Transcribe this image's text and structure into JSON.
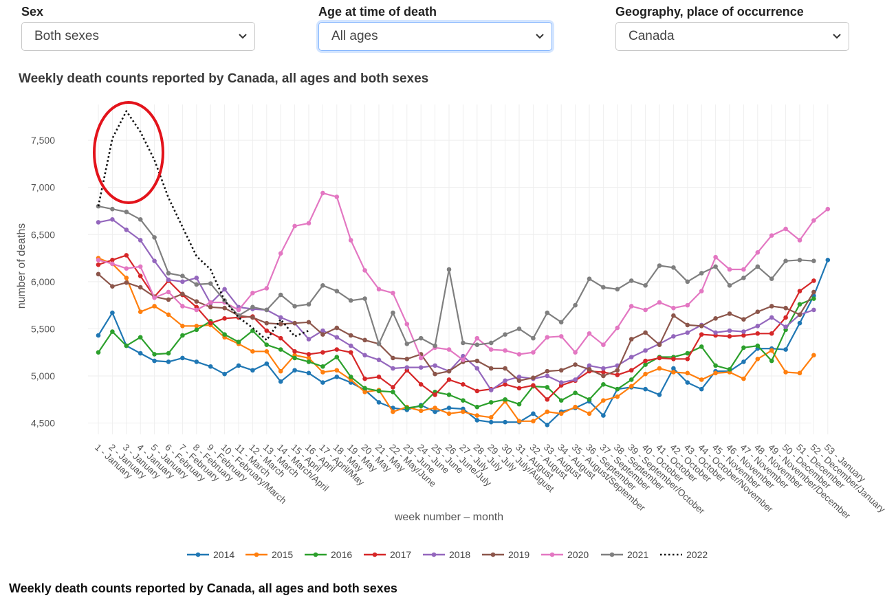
{
  "filters": [
    {
      "label": "Sex",
      "value": "Both sexes"
    },
    {
      "label": "Age at time of death",
      "value": "All ages"
    },
    {
      "label": "Geography, place of occurrence",
      "value": "Canada"
    }
  ],
  "bottom_title": "Weekly death counts reported by Canada, all ages and both sexes",
  "chart_data": {
    "type": "line",
    "title": "Weekly death counts reported by Canada, all ages and both sexes",
    "xlabel": "week number – month",
    "ylabel": "number of deaths",
    "ylim": [
      4380,
      7880
    ],
    "yticks": [
      4500,
      5000,
      5500,
      6000,
      6500,
      7000,
      7500
    ],
    "ytick_labels": [
      "4,500",
      "5,000",
      "5,500",
      "6,000",
      "6,500",
      "7,000",
      "7,500"
    ],
    "grid": true,
    "legend_position": "bottom",
    "annotation": "red ellipse highlighting the 2022 peak in weeks 1–6",
    "categories": [
      "1 - January",
      "2 - January",
      "3 - January",
      "4 - January",
      "5 - January",
      "6 - February",
      "7 - February",
      "8 - February",
      "9 - February",
      "10 - February/March",
      "11 - March",
      "12 - March",
      "13 - March",
      "14 - March/April",
      "15 - April",
      "16 - April",
      "17 - April/May",
      "18 - May",
      "19 - May",
      "20 - May",
      "21 - May",
      "22 - May/June",
      "23 - June",
      "24 - June",
      "25 - June",
      "26 - June/July",
      "27 - July",
      "28 - July",
      "29 - July",
      "30 - July/August",
      "31 - August",
      "32 - August",
      "33 - August",
      "34 - August",
      "35 - August/September",
      "36 - September",
      "37 - September",
      "38 - September",
      "39 - September/October",
      "40 - October",
      "41 - October",
      "42 - October",
      "43 - October",
      "44 - October/November",
      "45 - November",
      "46 - November",
      "47 - November",
      "48 - November",
      "49 - November/December",
      "50 - December",
      "51 - December",
      "52 - December/January",
      "53 - January"
    ],
    "series": [
      {
        "name": "2014",
        "color": "#1f77b4",
        "dash": false,
        "markers": true,
        "values": [
          5430,
          5670,
          5320,
          5240,
          5160,
          5150,
          5190,
          5150,
          5100,
          5020,
          5110,
          5060,
          5130,
          4940,
          5060,
          5030,
          4930,
          4990,
          4930,
          4850,
          4720,
          4660,
          4640,
          4690,
          4620,
          4660,
          4650,
          4530,
          4510,
          4510,
          4510,
          4600,
          4480,
          4620,
          4660,
          4730,
          4580,
          4860,
          4880,
          4860,
          4800,
          5080,
          4930,
          4860,
          5050,
          5050,
          5150,
          5290,
          5290,
          5280,
          5560,
          5850,
          6230
        ]
      },
      {
        "name": "2015",
        "color": "#ff7f0e",
        "dash": false,
        "markers": true,
        "values": [
          6250,
          6190,
          6040,
          5680,
          5740,
          5650,
          5530,
          5530,
          5540,
          5410,
          5340,
          5260,
          5260,
          5050,
          5220,
          5190,
          5040,
          5060,
          4960,
          4830,
          4850,
          4620,
          4670,
          4630,
          4660,
          4600,
          4620,
          4580,
          4560,
          4730,
          4520,
          4520,
          4620,
          4600,
          4670,
          4600,
          4740,
          4780,
          4890,
          5020,
          5080,
          5040,
          5030,
          4960,
          5030,
          5040,
          4970,
          5180,
          5270,
          5040,
          5030,
          5220,
          null
        ]
      },
      {
        "name": "2016",
        "color": "#2ca02c",
        "dash": false,
        "markers": true,
        "values": [
          5250,
          5470,
          5320,
          5410,
          5230,
          5240,
          5430,
          5490,
          5580,
          5440,
          5360,
          5480,
          5330,
          5280,
          5190,
          5150,
          5100,
          5200,
          4990,
          4870,
          4840,
          4830,
          4660,
          4680,
          4830,
          4800,
          4740,
          4670,
          4720,
          4750,
          4700,
          4890,
          4880,
          4740,
          4820,
          4750,
          4910,
          4860,
          4960,
          5120,
          5200,
          5200,
          5240,
          5310,
          5110,
          5070,
          5300,
          5320,
          5160,
          5490,
          5760,
          5820,
          null
        ]
      },
      {
        "name": "2017",
        "color": "#d62728",
        "dash": false,
        "markers": true,
        "values": [
          6180,
          6230,
          6280,
          6060,
          5840,
          6010,
          5860,
          5730,
          5560,
          5610,
          5620,
          5630,
          5480,
          5400,
          5260,
          5230,
          5250,
          5280,
          5250,
          4970,
          4990,
          4880,
          5060,
          4910,
          4800,
          4960,
          4910,
          4840,
          4860,
          4910,
          4870,
          4900,
          4750,
          4900,
          4950,
          5050,
          5040,
          5010,
          5060,
          5160,
          5190,
          5180,
          5180,
          5440,
          5430,
          5420,
          5430,
          5450,
          5450,
          5620,
          5900,
          6010,
          null
        ]
      },
      {
        "name": "2018",
        "color": "#9467bd",
        "dash": false,
        "markers": true,
        "values": [
          6630,
          6660,
          6550,
          6440,
          6220,
          6020,
          6000,
          6040,
          5770,
          5920,
          5730,
          5710,
          5700,
          5620,
          5560,
          5390,
          5480,
          5410,
          5320,
          5220,
          5170,
          5080,
          5090,
          5090,
          5110,
          5050,
          5210,
          5080,
          4850,
          4950,
          4990,
          4970,
          5000,
          4930,
          4960,
          5110,
          5080,
          5110,
          5200,
          5270,
          5340,
          5420,
          5460,
          5540,
          5460,
          5480,
          5470,
          5530,
          5620,
          5520,
          5650,
          5700,
          null
        ]
      },
      {
        "name": "2019",
        "color": "#8c564b",
        "dash": false,
        "markers": true,
        "values": [
          6080,
          5950,
          5990,
          5940,
          5840,
          5810,
          5870,
          5790,
          5730,
          5720,
          5640,
          5620,
          5560,
          5550,
          5560,
          5570,
          5440,
          5510,
          5430,
          5380,
          5340,
          5190,
          5180,
          5230,
          5020,
          5050,
          5150,
          5160,
          5080,
          5080,
          4950,
          4980,
          5050,
          5060,
          5120,
          5070,
          5000,
          5060,
          5390,
          5460,
          5330,
          5640,
          5540,
          5530,
          5610,
          5660,
          5600,
          5680,
          5740,
          5720,
          5650,
          5890,
          null
        ]
      },
      {
        "name": "2020",
        "color": "#e377c2",
        "dash": false,
        "markers": true,
        "values": [
          6230,
          6190,
          6140,
          6160,
          5830,
          5890,
          5740,
          5700,
          5780,
          5780,
          5700,
          5880,
          5930,
          6300,
          6590,
          6620,
          6940,
          6900,
          6440,
          6120,
          5920,
          5880,
          5550,
          5190,
          5300,
          5280,
          5170,
          5400,
          5280,
          5270,
          5230,
          5250,
          5410,
          5420,
          5250,
          5450,
          5330,
          5510,
          5740,
          5700,
          5780,
          5720,
          5750,
          5900,
          6260,
          6130,
          6130,
          6310,
          6490,
          6560,
          6440,
          6650,
          6770
        ]
      },
      {
        "name": "2021",
        "color": "#7f7f7f",
        "dash": false,
        "markers": true,
        "values": [
          6800,
          6770,
          6740,
          6660,
          6470,
          6090,
          6060,
          5970,
          5980,
          5800,
          5640,
          5730,
          5700,
          5860,
          5740,
          5760,
          5960,
          5900,
          5800,
          5820,
          5340,
          5670,
          5340,
          5400,
          5320,
          6130,
          5350,
          5330,
          5350,
          5440,
          5500,
          5400,
          5670,
          5570,
          5750,
          6030,
          5940,
          5920,
          6010,
          5960,
          6170,
          6150,
          6000,
          6090,
          6160,
          5960,
          6040,
          6160,
          6030,
          6220,
          6230,
          6220,
          null
        ]
      },
      {
        "name": "2022",
        "color": "#111111",
        "dash": true,
        "markers": false,
        "values": [
          6800,
          7520,
          7810,
          7590,
          7290,
          6890,
          6580,
          6270,
          6130,
          5800,
          5620,
          5510,
          5380,
          5600,
          5420,
          5480,
          null,
          null,
          null,
          null,
          null,
          null,
          null,
          null,
          null,
          null,
          null,
          null,
          null,
          null,
          null,
          null,
          null,
          null,
          null,
          null,
          null,
          null,
          null,
          null,
          null,
          null,
          null,
          null,
          null,
          null,
          null,
          null,
          null,
          null,
          null,
          null,
          null
        ]
      }
    ]
  }
}
